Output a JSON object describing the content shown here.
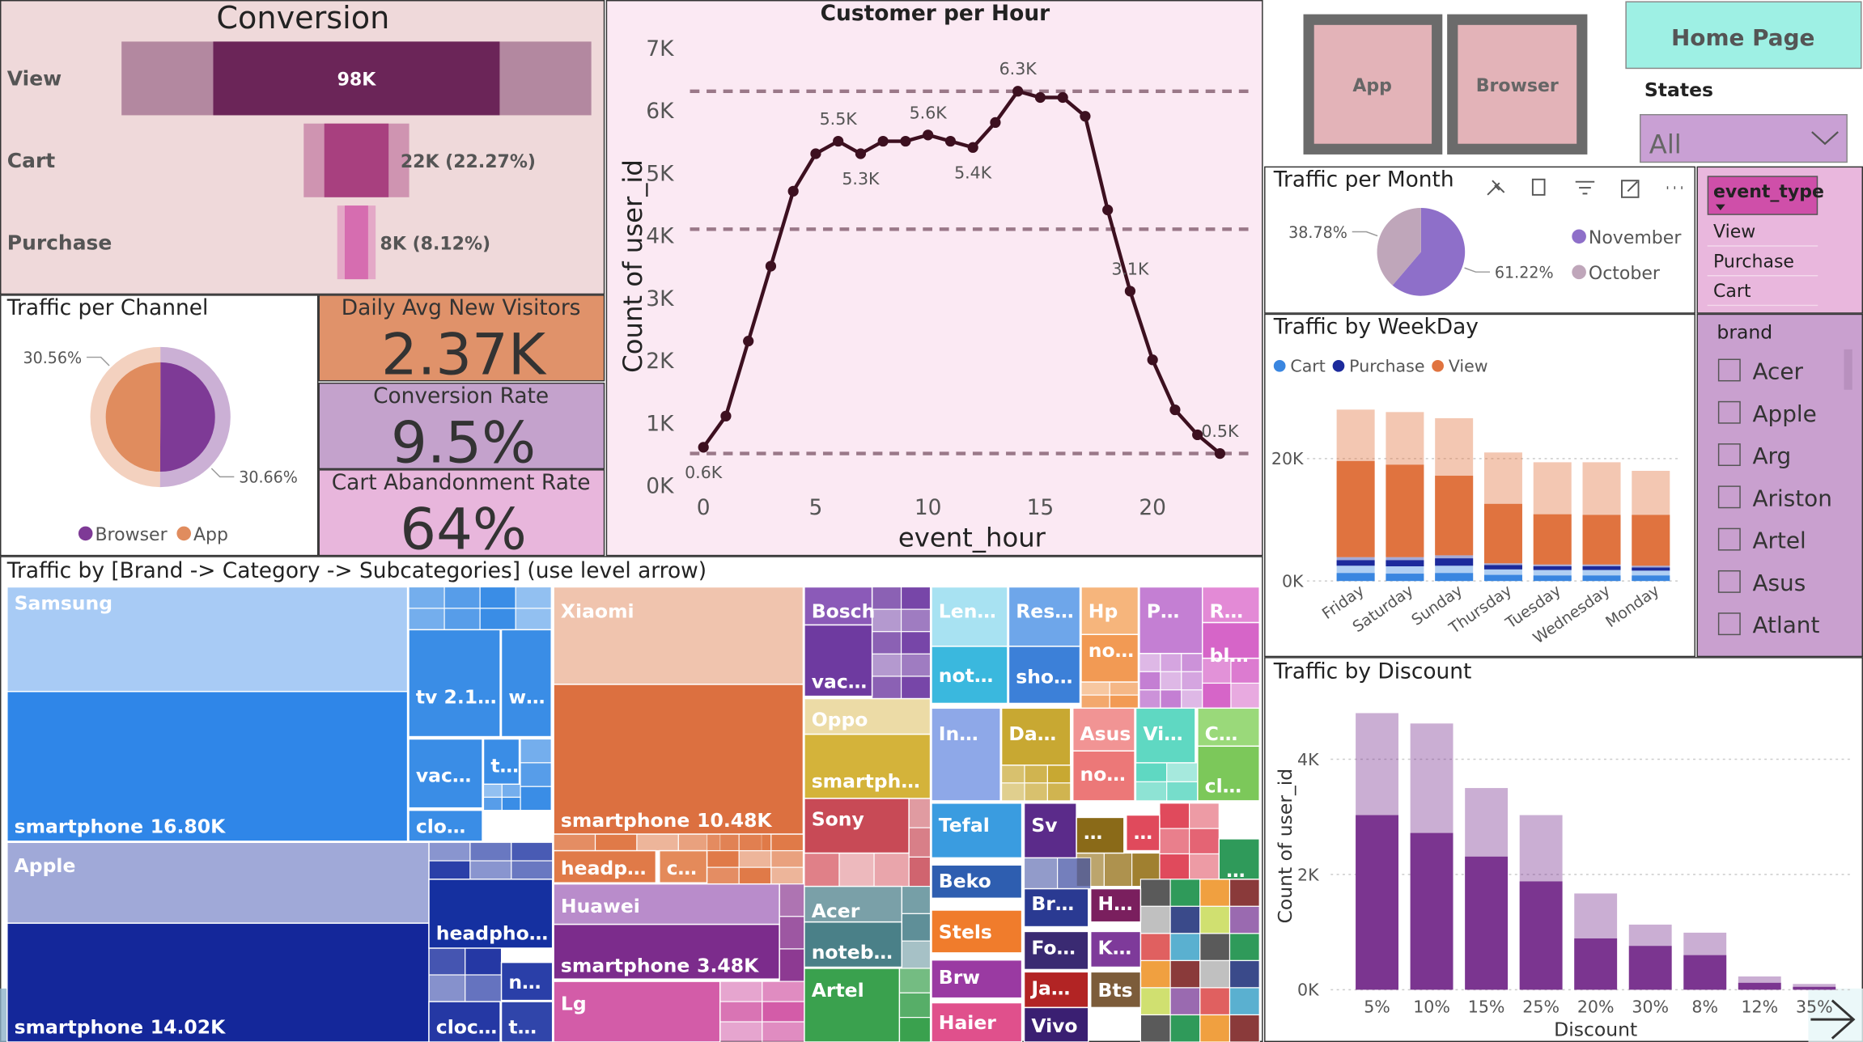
{
  "buttons": {
    "app": "App",
    "browser": "Browser",
    "home": "Home Page"
  },
  "slicers": {
    "states": {
      "title": "States",
      "selected": "All"
    },
    "event_type": {
      "title": "event_type",
      "items": [
        "View",
        "Purchase",
        "Cart"
      ]
    },
    "brand": {
      "title": "brand",
      "items": [
        "Acer",
        "Apple",
        "Arg",
        "Ariston",
        "Artel",
        "Asus",
        "Atlant"
      ]
    }
  },
  "kpis": [
    {
      "title": "Daily Avg New Visitors",
      "value": 2370,
      "value_label": "2.37K",
      "color": "#e0926a"
    },
    {
      "title": "Conversion Rate",
      "value": 9.5,
      "value_label": "9.5%",
      "color": "#c4a2cc"
    },
    {
      "title": "Cart Abandonment Rate",
      "value": 64,
      "value_label": "64%",
      "color": "#e8b6dc"
    }
  ],
  "chart_data": [
    {
      "type": "funnel",
      "title": "Conversion",
      "categories": [
        "View",
        "Cart",
        "Purchase"
      ],
      "values": [
        98000,
        22000,
        8000
      ],
      "value_labels": [
        "98K",
        "22K (22.27%)",
        "8K (8.12%)"
      ],
      "colors": [
        "#6b2558",
        "#a8407f",
        "#d66db0"
      ]
    },
    {
      "type": "line",
      "title": "Customer per Hour",
      "xlabel": "event_hour",
      "ylabel": "Count of user_id",
      "x": [
        0,
        1,
        2,
        3,
        4,
        5,
        6,
        7,
        8,
        9,
        10,
        11,
        12,
        13,
        14,
        15,
        16,
        17,
        18,
        19,
        20,
        21,
        22,
        23
      ],
      "values": [
        600,
        1100,
        2300,
        3500,
        4700,
        5300,
        5500,
        5300,
        5500,
        5500,
        5600,
        5500,
        5400,
        5800,
        6300,
        6200,
        6200,
        5900,
        4400,
        3100,
        2000,
        1200,
        800,
        500
      ],
      "value_labels": [
        "0.6K",
        null,
        null,
        null,
        null,
        null,
        "5.5K",
        "5.3K",
        null,
        null,
        "5.6K",
        null,
        "5.4K",
        null,
        "6.3K",
        null,
        null,
        null,
        null,
        "3.1K",
        null,
        null,
        null,
        "0.5K"
      ],
      "color": "#3d1020",
      "xlim": [
        -0.6,
        23.7
      ],
      "ylim": [
        0,
        7000
      ],
      "xticks": [
        0,
        5,
        10,
        15,
        20
      ],
      "yticks": [
        {
          "value": 0,
          "label": "0K"
        },
        {
          "value": 1000,
          "label": "1K"
        },
        {
          "value": 2000,
          "label": "2K"
        },
        {
          "value": 3000,
          "label": "3K"
        },
        {
          "value": 4000,
          "label": "4K"
        },
        {
          "value": 5000,
          "label": "5K"
        },
        {
          "value": 6000,
          "label": "6K"
        },
        {
          "value": 7000,
          "label": "7K"
        }
      ],
      "grid": false,
      "reference_lines": [
        "max",
        "mean",
        "min"
      ]
    },
    {
      "type": "pie",
      "title": "Traffic per Channel",
      "categories": [
        "Browser",
        "App"
      ],
      "values": [
        30.66,
        30.56
      ],
      "value_labels": [
        "30.66%",
        "30.56%"
      ],
      "colors": [
        "#7e3a96",
        "#e08c5e"
      ],
      "legend": "bottom"
    },
    {
      "type": "pie",
      "title": "Traffic per Month",
      "categories": [
        "November",
        "October"
      ],
      "values": [
        61.22,
        38.78
      ],
      "value_labels": [
        "61.22%",
        "38.78%"
      ],
      "colors": [
        "#8e6fc9",
        "#bfa6ba"
      ],
      "legend": "right"
    },
    {
      "type": "bar",
      "title": "Traffic by WeekDay",
      "stacked": true,
      "legend": "top-left",
      "grid": true,
      "categories": [
        "Friday",
        "Saturday",
        "Sunday",
        "Thursday",
        "Tuesday",
        "Wednesday",
        "Monday"
      ],
      "series": [
        {
          "name": "Cart",
          "color": "#3a86e0",
          "values": [
            2500,
            2400,
            2500,
            1900,
            1800,
            1800,
            1700
          ],
          "highlight_values": [
            1300,
            1200,
            1300,
            1000,
            900,
            900,
            900
          ]
        },
        {
          "name": "Purchase",
          "color": "#1c2a9c",
          "values": [
            1400,
            1500,
            1700,
            1000,
            900,
            900,
            800
          ],
          "highlight_values": [
            900,
            1000,
            1200,
            700,
            600,
            600,
            500
          ]
        },
        {
          "name": "View",
          "color": "#e0733f",
          "values": [
            24100,
            23700,
            22400,
            18100,
            16700,
            16700,
            15500
          ],
          "highlight_values": [
            15700,
            15100,
            13000,
            9700,
            8200,
            8100,
            8300
          ]
        }
      ],
      "ylim": [
        0,
        29000
      ],
      "yticks": [
        {
          "value": 0,
          "label": "0K"
        },
        {
          "value": 20000,
          "label": "20K"
        }
      ]
    },
    {
      "type": "bar",
      "title": "Traffic by Discount",
      "xlabel": "Discount",
      "ylabel": "Count of user_id",
      "stacked": false,
      "grid": true,
      "categories": [
        "5%",
        "10%",
        "15%",
        "25%",
        "20%",
        "30%",
        "8%",
        "12%",
        "35%"
      ],
      "series": [
        {
          "color": "#7b3590",
          "values": [
            4800,
            4620,
            3500,
            3030,
            1670,
            1130,
            990,
            230,
            100
          ],
          "highlight_values": [
            3030,
            2720,
            2310,
            1880,
            890,
            760,
            600,
            120,
            50
          ]
        }
      ],
      "ylim": [
        0,
        5000
      ],
      "yticks": [
        {
          "value": 0,
          "label": "0K"
        },
        {
          "value": 2000,
          "label": "2K"
        },
        {
          "value": 4000,
          "label": "4K"
        }
      ]
    },
    {
      "type": "treemap",
      "title": "Traffic by [Brand -> Category -> Subcategories] (use level arrow)",
      "tiles": [
        {
          "label": "Samsung",
          "color": "#a8cbf5"
        },
        {
          "label": "smartphone",
          "value": 16800,
          "value_label": "16.80K",
          "color": "#2f86e8"
        },
        {
          "label": "tv 2.1…",
          "color": "#3a8de6"
        },
        {
          "label": "w…",
          "color": "#3a8de6"
        },
        {
          "label": "vac…",
          "color": "#3a8de6"
        },
        {
          "label": "t…",
          "color": "#3a8de6"
        },
        {
          "label": "clo…",
          "color": "#3a8de6"
        },
        {
          "label": "Apple",
          "color": "#a0a9d8"
        },
        {
          "label": "smartphone",
          "value": 14020,
          "value_label": "14.02K",
          "color": "#14279a"
        },
        {
          "label": "headpho…",
          "color": "#1530a0"
        },
        {
          "label": "n…",
          "color": "#2a3fa8"
        },
        {
          "label": "cloc…",
          "color": "#2538a4"
        },
        {
          "label": "t…",
          "color": "#3045aa"
        },
        {
          "label": "Xiaomi",
          "color": "#f0c4ae"
        },
        {
          "label": "smartphone",
          "value": 10480,
          "value_label": "10.48K",
          "color": "#dc7040"
        },
        {
          "label": "headp…",
          "color": "#e07a48"
        },
        {
          "label": "c…",
          "color": "#e48a5a"
        },
        {
          "label": "Huawei",
          "color": "#b98ccb"
        },
        {
          "label": "smartphone",
          "value": 3480,
          "value_label": "3.48K",
          "color": "#7c2c8c"
        },
        {
          "label": "Lg",
          "color": "#d35ca8"
        },
        {
          "label": "Bosch",
          "color": "#8b5ab8"
        },
        {
          "label": "vac…",
          "color": "#6e3aa0"
        },
        {
          "label": "Oppo",
          "color": "#ecdba6"
        },
        {
          "label": "smartph…",
          "color": "#d4b33a"
        },
        {
          "label": "Sony",
          "color": "#c84a56"
        },
        {
          "label": "Acer",
          "color": "#7aa0a8"
        },
        {
          "label": "noteb…",
          "color": "#4a8088"
        },
        {
          "label": "Artel",
          "color": "#3aa14e"
        },
        {
          "label": "Len…",
          "color": "#a8e2f2"
        },
        {
          "label": "not…",
          "color": "#3ab8de"
        },
        {
          "label": "Res…",
          "color": "#6ea6ea"
        },
        {
          "label": "sho…",
          "color": "#3c80d8"
        },
        {
          "label": "Hp",
          "color": "#f6b57c"
        },
        {
          "label": "no…",
          "color": "#f29a54"
        },
        {
          "label": "P…",
          "color": "#c47fd3"
        },
        {
          "label": "R…",
          "color": "#e38ad6"
        },
        {
          "label": "bl…",
          "color": "#d665c8"
        },
        {
          "label": "In…",
          "color": "#8ea8e8"
        },
        {
          "label": "Da…",
          "color": "#c8a832"
        },
        {
          "label": "Asus",
          "color": "#f19494"
        },
        {
          "label": "no…",
          "color": "#ec7878"
        },
        {
          "label": "Vi…",
          "color": "#5fd8c2"
        },
        {
          "label": "C…",
          "color": "#9ad97a"
        },
        {
          "label": "cl…",
          "color": "#7cc85a"
        },
        {
          "label": "Tefal",
          "color": "#3a9ce0"
        },
        {
          "label": "Sv",
          "color": "#5b2b8a"
        },
        {
          "label": "…",
          "color": "#8a6a18"
        },
        {
          "label": "…",
          "color": "#e04a5c"
        },
        {
          "label": "…",
          "color": "#2f9a5a"
        },
        {
          "label": "Beko",
          "color": "#2e5eb0"
        },
        {
          "label": "Br…",
          "color": "#2a3a92"
        },
        {
          "label": "H…",
          "color": "#7a1f5e"
        },
        {
          "label": "Stels",
          "color": "#f07c2c"
        },
        {
          "label": "Fo…",
          "color": "#3a2a72"
        },
        {
          "label": "K…",
          "color": "#7e3a9a"
        },
        {
          "label": "Brw",
          "color": "#9a3aa2"
        },
        {
          "label": "Ja…",
          "color": "#b22424"
        },
        {
          "label": "Bts",
          "color": "#7c5c3a"
        },
        {
          "label": "Haier",
          "color": "#e0508c"
        },
        {
          "label": "Vivo",
          "color": "#3a1f72"
        }
      ]
    }
  ]
}
